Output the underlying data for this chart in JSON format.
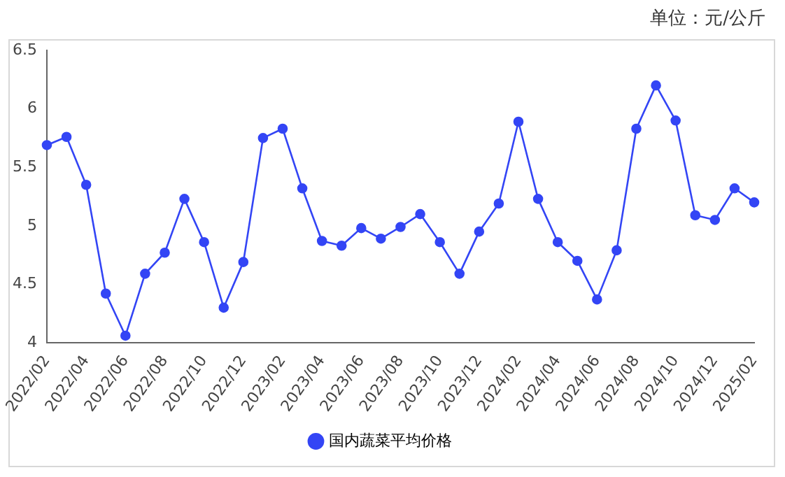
{
  "chart_data": {
    "type": "line",
    "categories": [
      "2022/02",
      null,
      "2022/04",
      null,
      "2022/06",
      null,
      "2022/08",
      null,
      "2022/10",
      null,
      "2022/12",
      null,
      "2023/02",
      null,
      "2023/04",
      null,
      "2023/06",
      null,
      "2023/08",
      null,
      "2023/10",
      null,
      "2023/12",
      null,
      "2024/02",
      null,
      "2024/04",
      null,
      "2024/06",
      null,
      "2024/08",
      null,
      "2024/10",
      null,
      "2024/12",
      null,
      "2025/02"
    ],
    "series": [
      {
        "name": "国内蔬菜平均价格",
        "color": "#3345f5",
        "values": [
          5.69,
          5.76,
          5.35,
          4.42,
          4.06,
          4.59,
          4.77,
          5.23,
          4.86,
          4.3,
          4.69,
          5.75,
          5.83,
          5.32,
          4.87,
          4.83,
          4.98,
          4.89,
          4.99,
          5.1,
          4.86,
          4.59,
          4.95,
          5.19,
          5.89,
          5.23,
          4.86,
          4.7,
          4.37,
          4.79,
          5.83,
          6.2,
          5.9,
          5.09,
          5.05,
          5.32,
          5.2
        ]
      }
    ],
    "ylim": [
      4,
      6.5
    ],
    "yticks": [
      4,
      4.5,
      5,
      5.5,
      6,
      6.5
    ],
    "annotations": [
      "单位：元/公斤"
    ],
    "grid": false,
    "legend": "bottom",
    "marker": "circle",
    "line_style": "solid"
  }
}
